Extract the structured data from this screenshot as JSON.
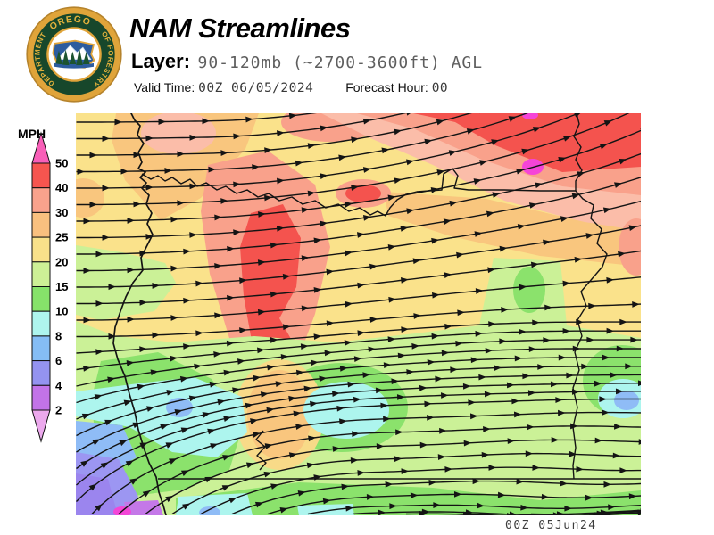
{
  "header": {
    "title": "NAM Streamlines",
    "layer_label": "Layer:",
    "layer_value": "90-120mb (~2700-3600ft) AGL",
    "valid_time_label": "Valid Time:",
    "valid_time_value": "00Z 06/05/2024",
    "forecast_hour_label": "Forecast Hour:",
    "forecast_hour_value": "00",
    "logo": {
      "ring_top": "OREGON",
      "ring_left": "DEPARTMENT",
      "ring_right": "OF FORESTRY"
    }
  },
  "legend": {
    "units": "MPH",
    "ticks": [
      "50",
      "40",
      "30",
      "25",
      "20",
      "15",
      "10",
      "8",
      "6",
      "4",
      "2"
    ],
    "segment_colors": [
      "#f6554f",
      "#f9a28c",
      "#f9c07f",
      "#f8e18a",
      "#cdf096",
      "#86e26a",
      "#aef5ee",
      "#85bdf5",
      "#9493f0",
      "#c273e8"
    ],
    "arrow_top_color": "#f85fb8",
    "arrow_bottom_color": "#eca9ed"
  },
  "map": {
    "timestamp": "00Z 05Jun24",
    "palette": {
      "yellow": "#fae28b",
      "yellow2": "#f8da88",
      "orange": "#f9c67e",
      "salmon": "#f9a18b",
      "pink": "#fbbda9",
      "red": "#f4534e",
      "magenta": "#f544d8",
      "magenta2": "#f346d7",
      "lgreen": "#cbf197",
      "green": "#8be26c",
      "cyan": "#adf5ee",
      "blue": "#8fbcf6",
      "periwinkle": "#9c96f2",
      "purple": "#9b85ee",
      "violet": "#c478e8",
      "line": "#141414"
    },
    "flow": {
      "stroke": "#141414",
      "arrow_spacing": 46,
      "left_seed_spacing": 18.5,
      "bottom_seeds": [
        18,
        48,
        78,
        108,
        140,
        175,
        215,
        260,
        310,
        370,
        440,
        510,
        575
      ]
    }
  }
}
